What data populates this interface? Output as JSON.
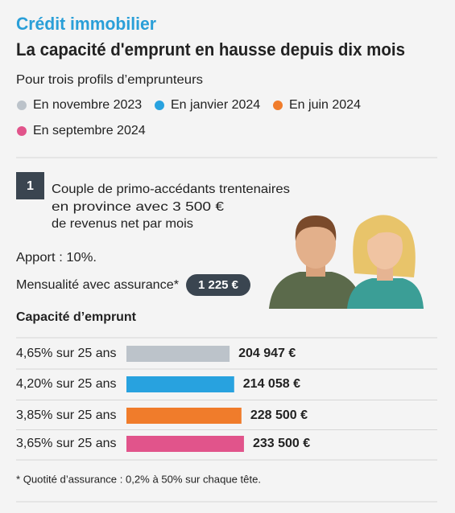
{
  "header": {
    "kicker": "Crédit immobilier",
    "title": "La capacité d'emprunt en hausse depuis dix mois",
    "intro": "Pour trois profils d’emprunteurs"
  },
  "profile": {
    "number": "1",
    "description": [
      "Couple de primo-accédants trentenaires",
      "en province avec 3 500 €",
      "de revenus net par mois"
    ],
    "apport": "Apport : 10%.",
    "payment_label": "Mensualité avec assurance*",
    "payment_value": "1 225 €"
  },
  "chart_data": {
    "type": "bar",
    "orientation": "horizontal",
    "title": "Capacité d’emprunt",
    "legend": [
      "En novembre 2023",
      "En janvier 2024",
      "En juin 2024",
      "En septembre 2024"
    ],
    "categories": [
      "4,65% sur 25 ans",
      "4,20% sur 25 ans",
      "3,85% sur 25 ans",
      "3,65% sur 25 ans"
    ],
    "values": [
      204947,
      214058,
      228500,
      233500
    ],
    "value_labels": [
      "204 947 €",
      "214 058 €",
      "228 500 €",
      "233 500 €"
    ],
    "colors": [
      "#bcc3ca",
      "#28a2df",
      "#f07c2b",
      "#e1548b"
    ],
    "xlim": [
      0,
      400000
    ]
  },
  "footnote": "* Quotité d’assurance : 0,2% à 50% sur chaque tête."
}
